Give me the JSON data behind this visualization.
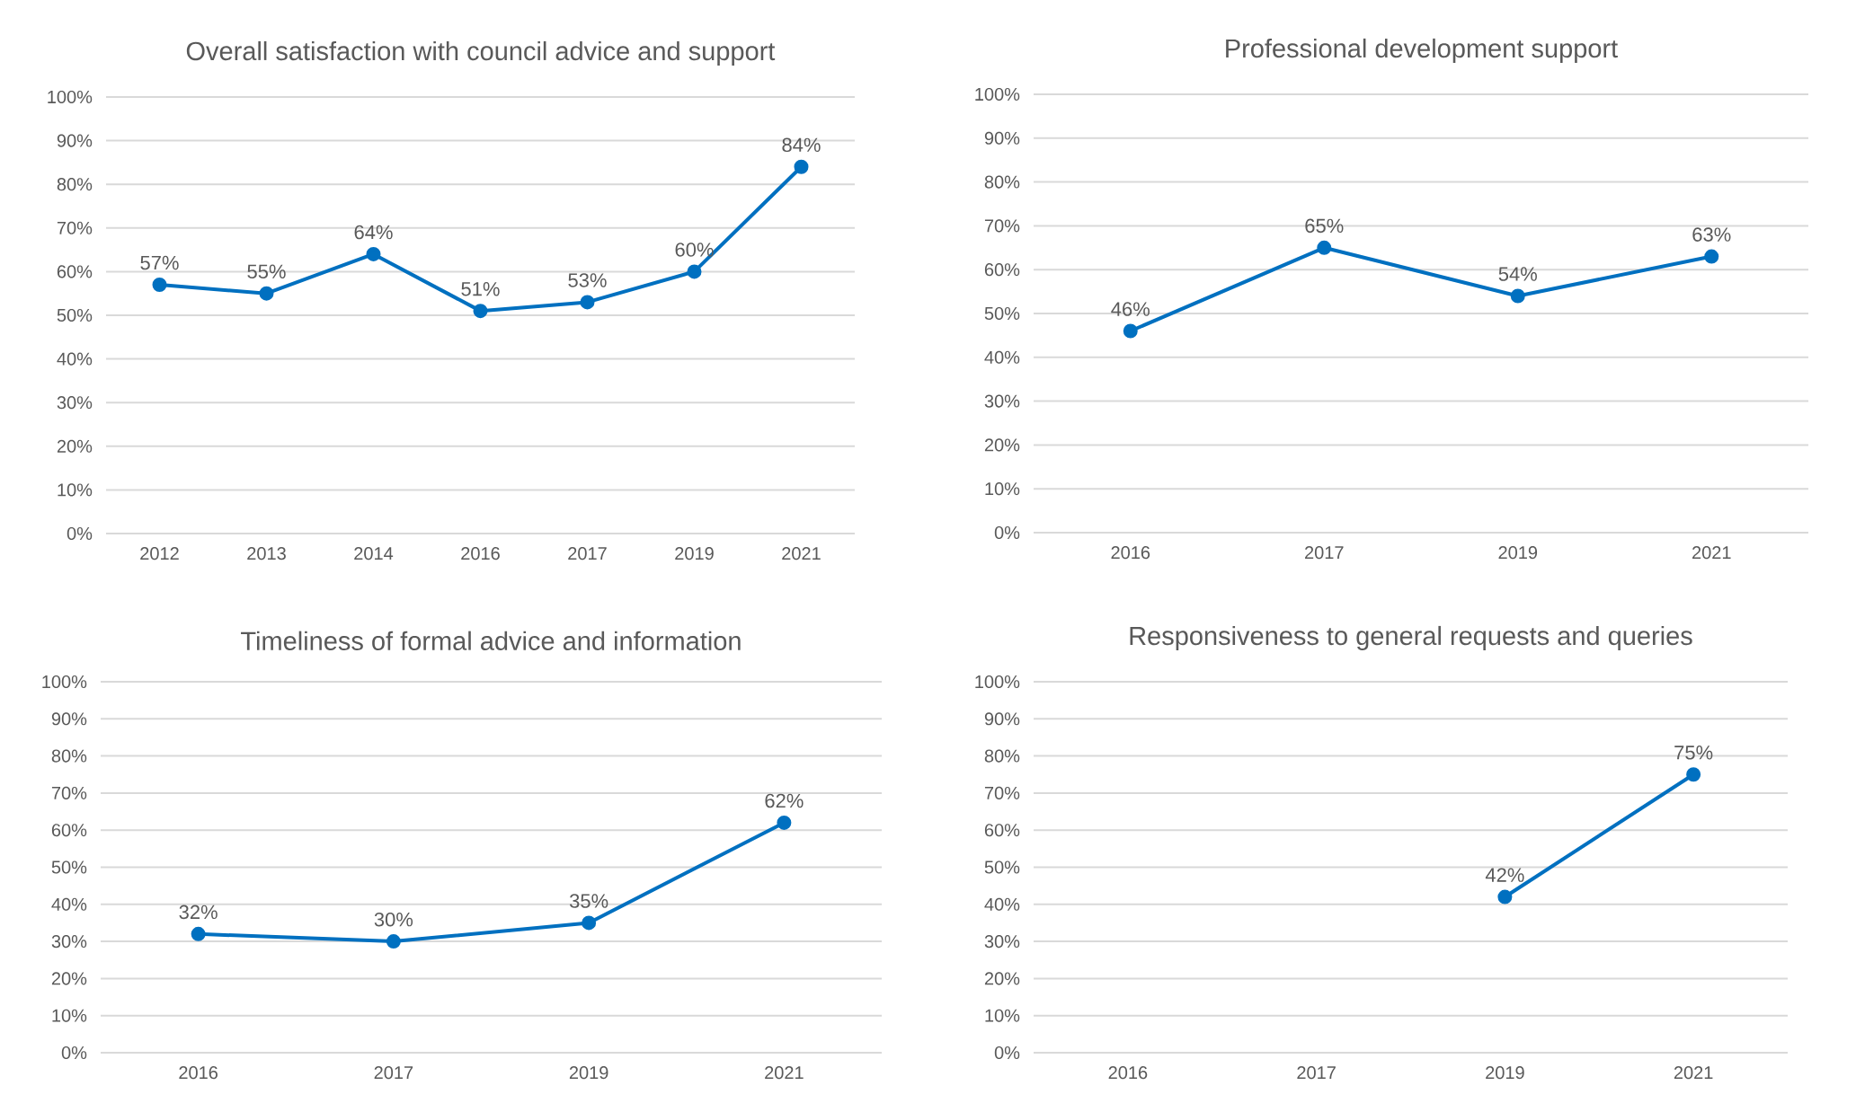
{
  "chart_data": [
    {
      "type": "line",
      "title": "Overall satisfaction with council advice and support",
      "categories": [
        "2012",
        "2013",
        "2014",
        "2016",
        "2017",
        "2019",
        "2021"
      ],
      "series": [
        {
          "color": "#0070c0",
          "values": [
            57,
            55,
            64,
            51,
            53,
            60,
            84
          ],
          "value_labels": [
            "57%",
            "55%",
            "64%",
            "51%",
            "53%",
            "60%",
            "84%"
          ]
        }
      ],
      "ylim": [
        0,
        100
      ],
      "yticks": [
        {
          "value": 0,
          "label": "0%"
        },
        {
          "value": 10,
          "label": "10%"
        },
        {
          "value": 20,
          "label": "20%"
        },
        {
          "value": 30,
          "label": "30%"
        },
        {
          "value": 40,
          "label": "40%"
        },
        {
          "value": 50,
          "label": "50%"
        },
        {
          "value": 60,
          "label": "60%"
        },
        {
          "value": 70,
          "label": "70%"
        },
        {
          "value": 80,
          "label": "80%"
        },
        {
          "value": 90,
          "label": "90%"
        },
        {
          "value": 100,
          "label": "100%"
        }
      ],
      "grid": "y",
      "marker": "circle"
    },
    {
      "type": "line",
      "title": "Professional development support",
      "categories": [
        "2016",
        "2017",
        "2019",
        "2021"
      ],
      "series": [
        {
          "color": "#0070c0",
          "values": [
            46,
            65,
            54,
            63
          ],
          "value_labels": [
            "46%",
            "65%",
            "54%",
            "63%"
          ]
        }
      ],
      "ylim": [
        0,
        100
      ],
      "yticks": [
        {
          "value": 0,
          "label": "0%"
        },
        {
          "value": 10,
          "label": "10%"
        },
        {
          "value": 20,
          "label": "20%"
        },
        {
          "value": 30,
          "label": "30%"
        },
        {
          "value": 40,
          "label": "40%"
        },
        {
          "value": 50,
          "label": "50%"
        },
        {
          "value": 60,
          "label": "60%"
        },
        {
          "value": 70,
          "label": "70%"
        },
        {
          "value": 80,
          "label": "80%"
        },
        {
          "value": 90,
          "label": "90%"
        },
        {
          "value": 100,
          "label": "100%"
        }
      ],
      "grid": "y",
      "marker": "circle"
    },
    {
      "type": "line",
      "title": "Timeliness of formal advice and information",
      "categories": [
        "2016",
        "2017",
        "2019",
        "2021"
      ],
      "series": [
        {
          "color": "#0070c0",
          "values": [
            32,
            30,
            35,
            62
          ],
          "value_labels": [
            "32%",
            "30%",
            "35%",
            "62%"
          ]
        }
      ],
      "ylim": [
        0,
        100
      ],
      "yticks": [
        {
          "value": 0,
          "label": "0%"
        },
        {
          "value": 10,
          "label": "10%"
        },
        {
          "value": 20,
          "label": "20%"
        },
        {
          "value": 30,
          "label": "30%"
        },
        {
          "value": 40,
          "label": "40%"
        },
        {
          "value": 50,
          "label": "50%"
        },
        {
          "value": 60,
          "label": "60%"
        },
        {
          "value": 70,
          "label": "70%"
        },
        {
          "value": 80,
          "label": "80%"
        },
        {
          "value": 90,
          "label": "90%"
        },
        {
          "value": 100,
          "label": "100%"
        }
      ],
      "grid": "y",
      "marker": "circle"
    },
    {
      "type": "line",
      "title": "Responsiveness to general requests and queries",
      "categories": [
        "2016",
        "2017",
        "2019",
        "2021"
      ],
      "series": [
        {
          "color": "#0070c0",
          "values": [
            null,
            null,
            42,
            75
          ],
          "value_labels": [
            null,
            null,
            "42%",
            "75%"
          ]
        }
      ],
      "ylim": [
        0,
        100
      ],
      "yticks": [
        {
          "value": 0,
          "label": "0%"
        },
        {
          "value": 10,
          "label": "10%"
        },
        {
          "value": 20,
          "label": "20%"
        },
        {
          "value": 30,
          "label": "30%"
        },
        {
          "value": 40,
          "label": "40%"
        },
        {
          "value": 50,
          "label": "50%"
        },
        {
          "value": 60,
          "label": "60%"
        },
        {
          "value": 70,
          "label": "70%"
        },
        {
          "value": 80,
          "label": "80%"
        },
        {
          "value": 90,
          "label": "90%"
        },
        {
          "value": 100,
          "label": "100%"
        }
      ],
      "grid": "y",
      "marker": "circle"
    }
  ]
}
